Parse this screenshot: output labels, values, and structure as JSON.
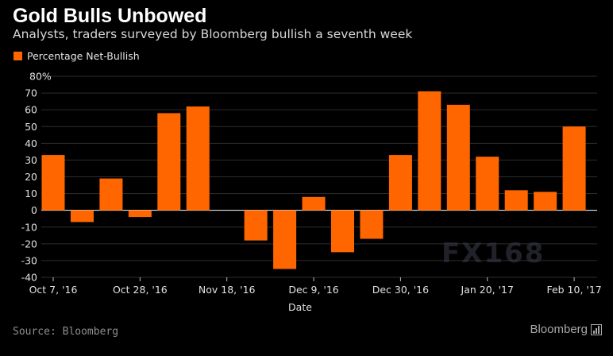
{
  "header": {
    "title": "Gold Bulls Unbowed",
    "subtitle": "Analysts, traders surveyed by Bloomberg bullish a seventh week"
  },
  "footer": {
    "source": "Source: Bloomberg",
    "brand": "Bloomberg",
    "brand_icon": "bloomberg-chart-icon"
  },
  "watermark": "FX168",
  "colors": {
    "background": "#000000",
    "bar": "#ff6600",
    "gridline": "#2e2e2e",
    "zero_line": "#ffffff"
  },
  "chart_data": {
    "type": "bar",
    "title": "Gold Bulls Unbowed",
    "subtitle": "Analysts, traders surveyed by Bloomberg bullish a seventh week",
    "xlabel": "Date",
    "ylabel": "",
    "ylim": [
      -40,
      80
    ],
    "yticks": [
      -40,
      -30,
      -20,
      -10,
      0,
      10,
      20,
      30,
      40,
      50,
      60,
      70,
      80
    ],
    "ytick_labels": [
      "-40",
      "-30",
      "-20",
      "-10",
      "0",
      "10",
      "20",
      "30",
      "40",
      "50",
      "60",
      "70",
      "80%"
    ],
    "xtick_labels": [
      "Oct 7, '16",
      "Oct 28, '16",
      "Nov 18, '16",
      "Dec 9, '16",
      "Dec 30, '16",
      "Jan 20, '17",
      "Feb 10, '17"
    ],
    "grid": true,
    "legend_position": "top-left",
    "series": [
      {
        "name": "Percentage Net-Bullish",
        "color": "#ff6600",
        "x": [
          "2016-10-07",
          "2016-10-14",
          "2016-10-21",
          "2016-10-28",
          "2016-11-04",
          "2016-11-11",
          "2016-11-18",
          "2016-11-25",
          "2016-12-02",
          "2016-12-09",
          "2016-12-16",
          "2016-12-23",
          "2016-12-30",
          "2017-01-06",
          "2017-01-13",
          "2017-01-20",
          "2017-01-27",
          "2017-02-03",
          "2017-02-10"
        ],
        "values": [
          33,
          -7,
          19,
          -4,
          58,
          62,
          null,
          -18,
          -35,
          8,
          -25,
          -17,
          33,
          71,
          63,
          32,
          12,
          11,
          50
        ]
      }
    ]
  }
}
